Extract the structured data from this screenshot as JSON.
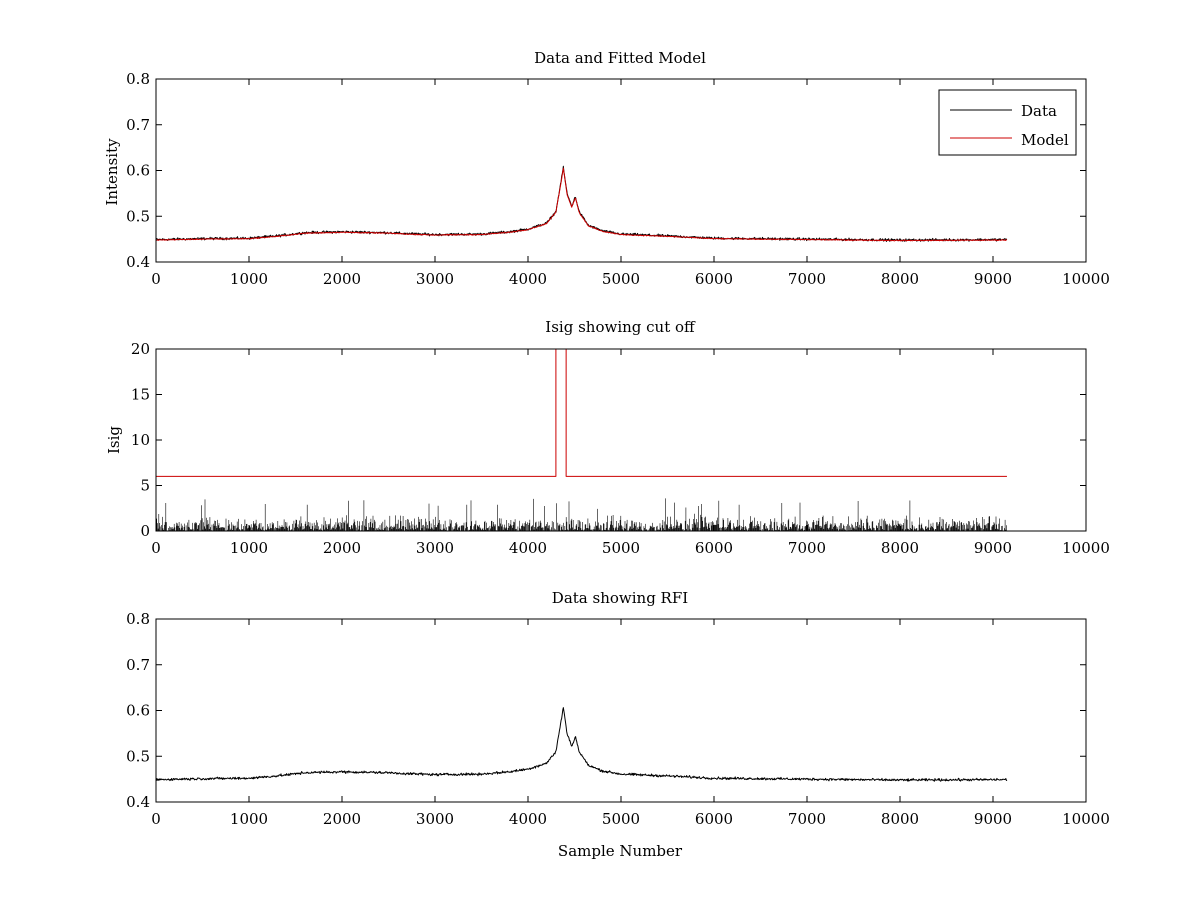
{
  "chart_data": [
    {
      "type": "line",
      "title": "Data and Fitted Model",
      "xlabel": "",
      "ylabel": "Intensity",
      "xlim": [
        0,
        10000
      ],
      "ylim": [
        0.4,
        0.8
      ],
      "xticks": [
        0,
        1000,
        2000,
        3000,
        4000,
        5000,
        6000,
        7000,
        8000,
        9000,
        10000
      ],
      "xtick_labels": [
        "0",
        "1000",
        "2000",
        "3000",
        "4000",
        "5000",
        "6000",
        "7000",
        "8000",
        "9000",
        "10000"
      ],
      "yticks": [
        0.4,
        0.5,
        0.6,
        0.7,
        0.8
      ],
      "ytick_labels": [
        "0.4",
        "0.5",
        "0.6",
        "0.7",
        "0.8"
      ],
      "grid": false,
      "legend": {
        "position": "top-right",
        "entries": [
          {
            "name": "Data",
            "color": "#000000"
          },
          {
            "name": "Model",
            "color": "#cc0000"
          }
        ]
      },
      "series": [
        {
          "name": "Data",
          "color": "#000000",
          "noise": 0.004,
          "x": [
            0,
            500,
            1000,
            1300,
            1600,
            2000,
            2500,
            2700,
            3000,
            3500,
            3800,
            4000,
            4200,
            4300,
            4350,
            4380,
            4420,
            4470,
            4510,
            4550,
            4650,
            4800,
            5000,
            5500,
            6000,
            7000,
            8000,
            9150
          ],
          "y": [
            0.449,
            0.451,
            0.452,
            0.457,
            0.464,
            0.466,
            0.464,
            0.462,
            0.46,
            0.461,
            0.466,
            0.472,
            0.485,
            0.51,
            0.57,
            0.607,
            0.55,
            0.522,
            0.543,
            0.51,
            0.48,
            0.468,
            0.461,
            0.457,
            0.452,
            0.45,
            0.448,
            0.449
          ]
        },
        {
          "name": "Model",
          "color": "#cc0000",
          "noise": 0.0015,
          "x": [
            0,
            500,
            1000,
            1300,
            1600,
            2000,
            2500,
            2700,
            3000,
            3500,
            3800,
            4000,
            4200,
            4300,
            4350,
            4380,
            4420,
            4470,
            4510,
            4550,
            4650,
            4800,
            5000,
            5500,
            6000,
            7000,
            8000,
            9150
          ],
          "y": [
            0.448,
            0.45,
            0.451,
            0.456,
            0.463,
            0.465,
            0.463,
            0.461,
            0.459,
            0.46,
            0.465,
            0.471,
            0.484,
            0.509,
            0.568,
            0.605,
            0.548,
            0.52,
            0.541,
            0.508,
            0.479,
            0.467,
            0.46,
            0.456,
            0.451,
            0.449,
            0.447,
            0.448
          ]
        }
      ]
    },
    {
      "type": "line",
      "title": "Isig showing cut off",
      "xlabel": "",
      "ylabel": "Isig",
      "xlim": [
        0,
        10000
      ],
      "ylim": [
        0,
        20
      ],
      "xticks": [
        0,
        1000,
        2000,
        3000,
        4000,
        5000,
        6000,
        7000,
        8000,
        9000,
        10000
      ],
      "xtick_labels": [
        "0",
        "1000",
        "2000",
        "3000",
        "4000",
        "5000",
        "6000",
        "7000",
        "8000",
        "9000",
        "10000"
      ],
      "yticks": [
        0,
        5,
        10,
        15,
        20
      ],
      "ytick_labels": [
        "0",
        "5",
        "10",
        "15",
        "20"
      ],
      "grid": false,
      "series": [
        {
          "name": "Cut off",
          "color": "#cc0000",
          "noise": 0,
          "x": [
            0,
            4300,
            4300,
            4410,
            4410,
            9150
          ],
          "y": [
            6,
            6,
            20,
            20,
            6,
            6
          ]
        },
        {
          "name": "Isig",
          "color": "#000000",
          "style": "spikes",
          "x_range": [
            0,
            9150
          ],
          "spike_max": 2.4,
          "spike_peak": 3.9
        }
      ]
    },
    {
      "type": "line",
      "title": "Data showing RFI",
      "xlabel": "Sample Number",
      "ylabel": "",
      "xlim": [
        0,
        10000
      ],
      "ylim": [
        0.4,
        0.8
      ],
      "xticks": [
        0,
        1000,
        2000,
        3000,
        4000,
        5000,
        6000,
        7000,
        8000,
        9000,
        10000
      ],
      "xtick_labels": [
        "0",
        "1000",
        "2000",
        "3000",
        "4000",
        "5000",
        "6000",
        "7000",
        "8000",
        "9000",
        "10000"
      ],
      "yticks": [
        0.4,
        0.5,
        0.6,
        0.7,
        0.8
      ],
      "ytick_labels": [
        "0.4",
        "0.5",
        "0.6",
        "0.7",
        "0.8"
      ],
      "grid": false,
      "series": [
        {
          "name": "Data",
          "color": "#000000",
          "noise": 0.004,
          "x": [
            0,
            500,
            1000,
            1300,
            1600,
            2000,
            2500,
            2700,
            3000,
            3500,
            3800,
            4000,
            4200,
            4300,
            4350,
            4380,
            4420,
            4470,
            4510,
            4550,
            4650,
            4800,
            5000,
            5500,
            6000,
            7000,
            8000,
            9150
          ],
          "y": [
            0.449,
            0.451,
            0.452,
            0.457,
            0.464,
            0.466,
            0.464,
            0.462,
            0.46,
            0.461,
            0.466,
            0.472,
            0.485,
            0.51,
            0.57,
            0.607,
            0.55,
            0.522,
            0.543,
            0.51,
            0.48,
            0.468,
            0.461,
            0.457,
            0.452,
            0.45,
            0.448,
            0.449
          ]
        }
      ]
    }
  ]
}
